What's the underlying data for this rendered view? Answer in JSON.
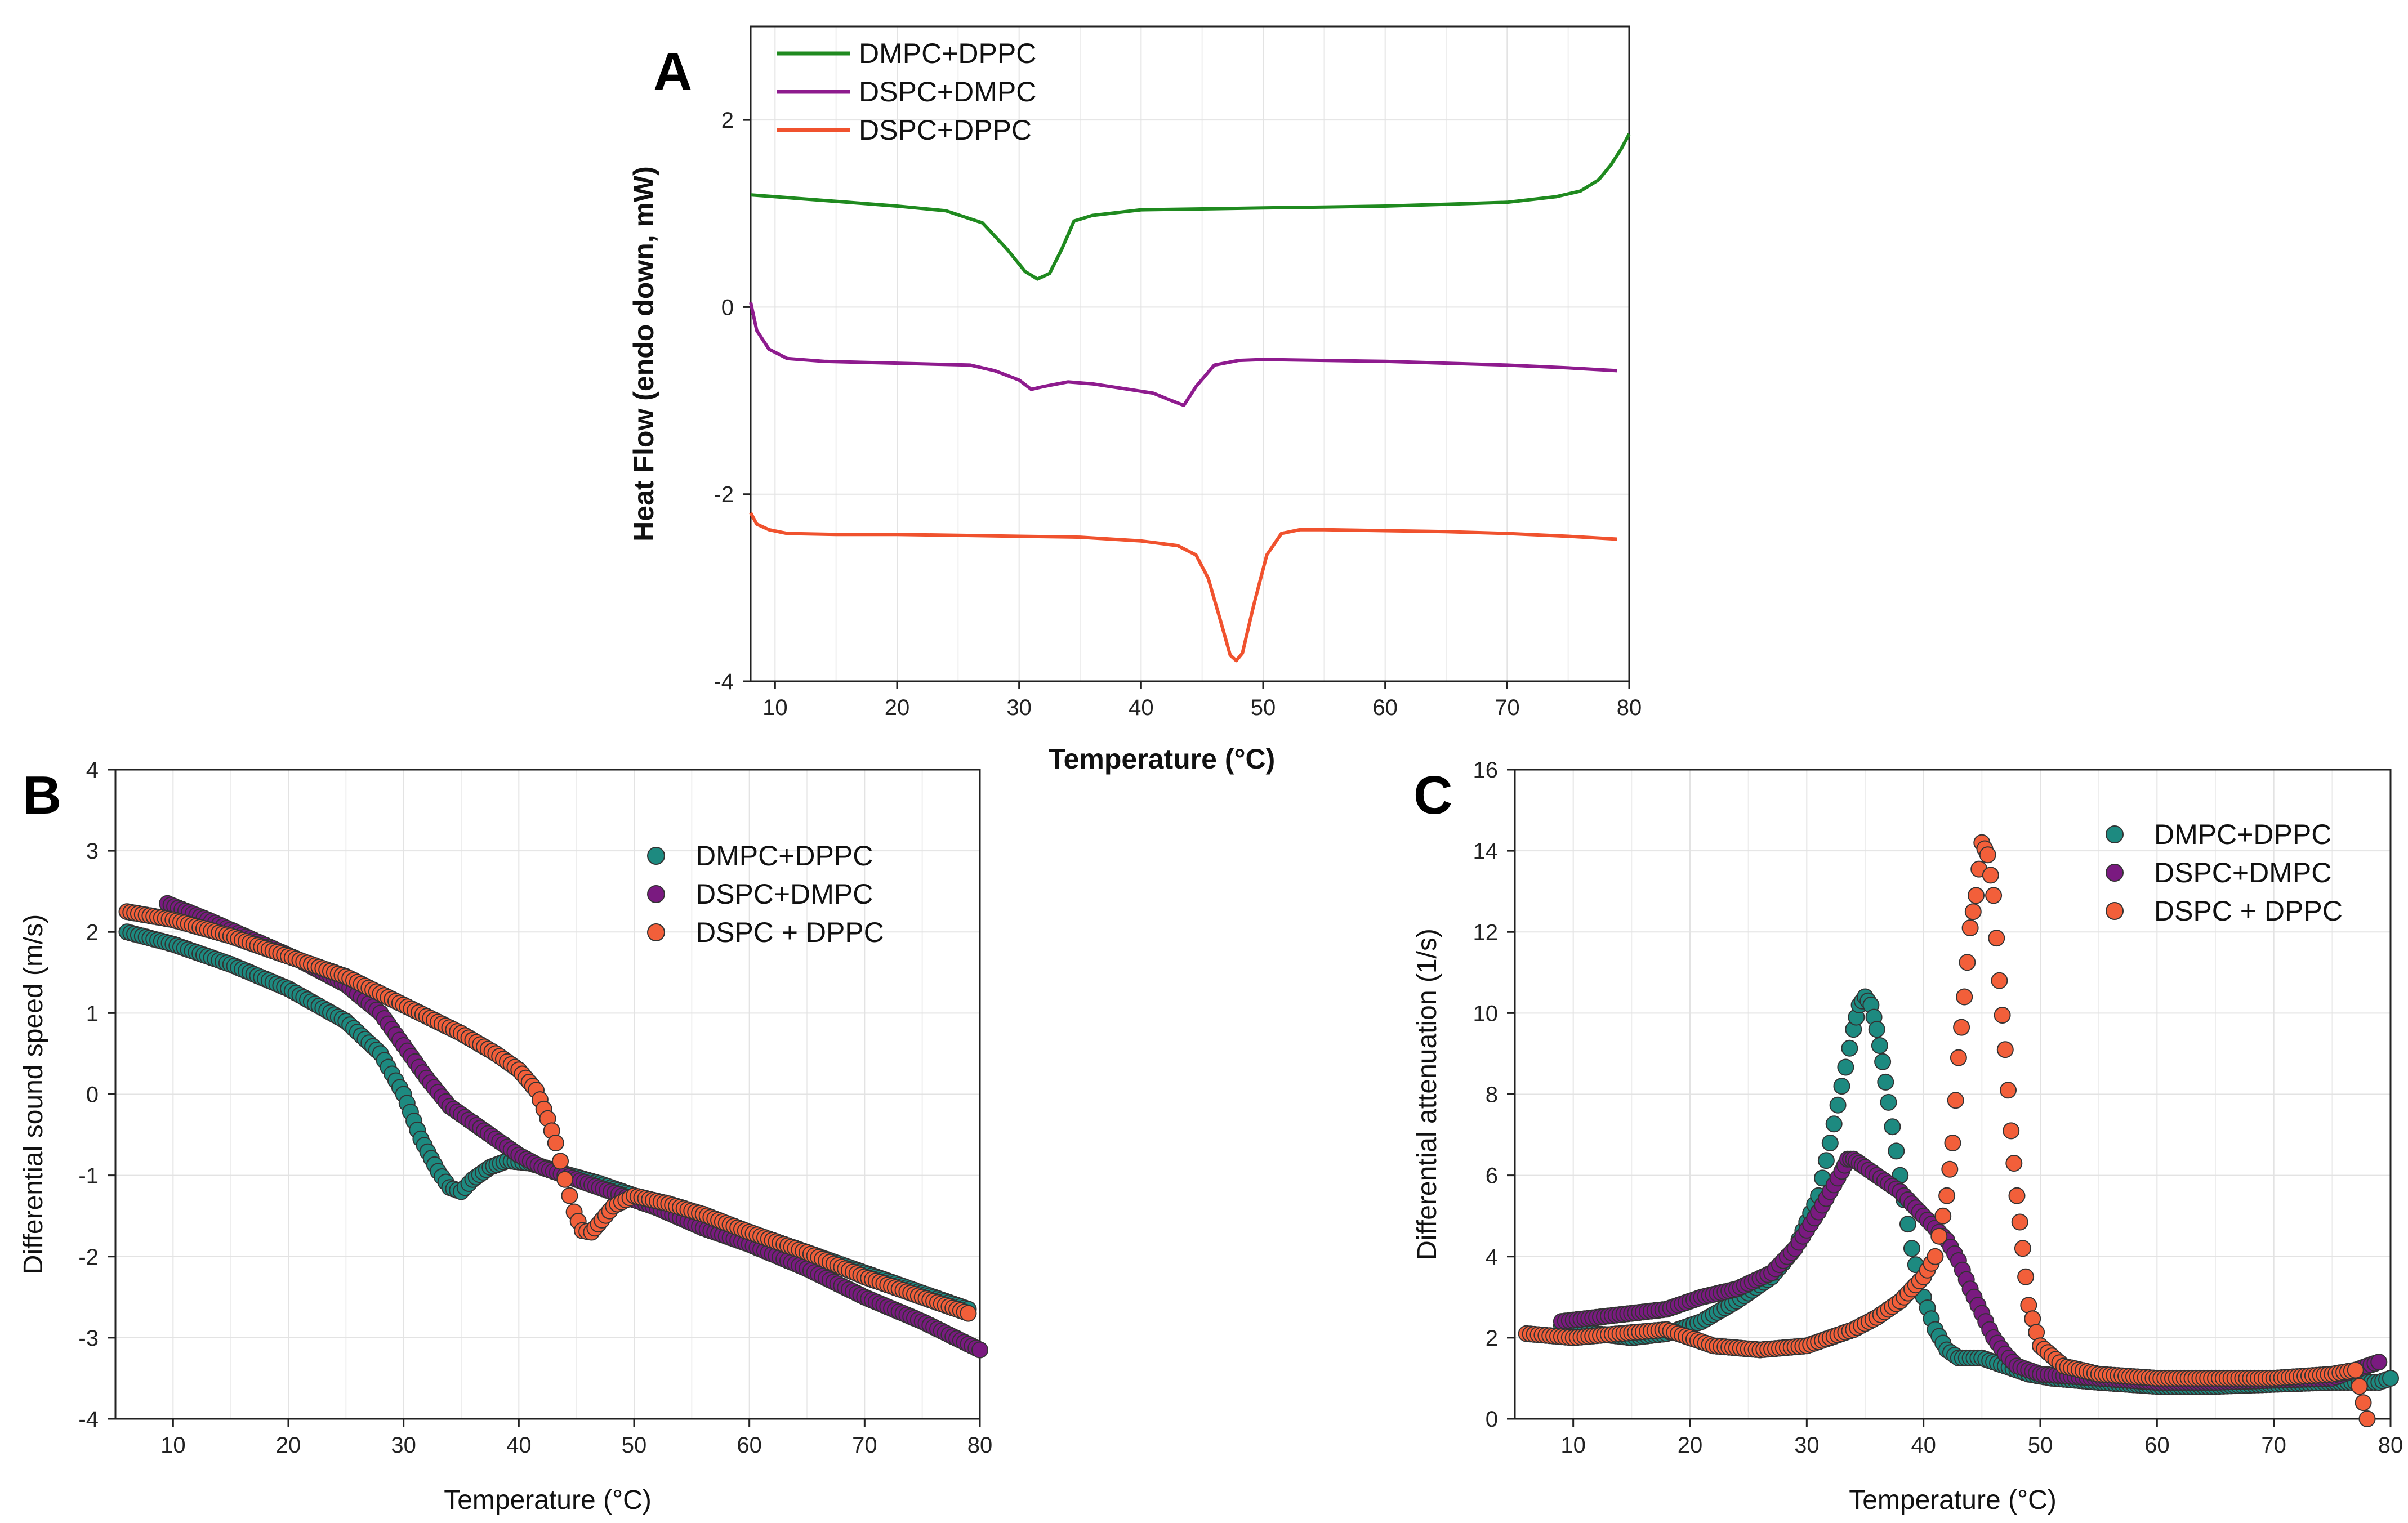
{
  "chart_data": [
    {
      "panel": "A",
      "type": "line",
      "title": "",
      "xlabel": "Temperature (°C)",
      "ylabel": "Heat Flow (endo down, mW)",
      "xlim": [
        8,
        80
      ],
      "ylim": [
        -4,
        3
      ],
      "xticks": [
        10,
        20,
        30,
        40,
        50,
        60,
        70,
        80
      ],
      "yticks": [
        -4,
        -2,
        0,
        2
      ],
      "grid": true,
      "legend_position": "top-left",
      "series": [
        {
          "name": "DMPC+DPPC",
          "color": "#1f8a1f",
          "x": [
            8,
            12,
            16,
            20,
            24,
            27,
            29,
            30.5,
            31.5,
            32.5,
            33.5,
            34.5,
            36,
            40,
            45,
            50,
            55,
            60,
            65,
            70,
            74,
            76,
            77.5,
            78.5,
            79.3,
            80
          ],
          "y": [
            1.2,
            1.16,
            1.12,
            1.08,
            1.03,
            0.9,
            0.62,
            0.38,
            0.3,
            0.36,
            0.62,
            0.92,
            0.98,
            1.04,
            1.05,
            1.06,
            1.07,
            1.08,
            1.1,
            1.12,
            1.18,
            1.24,
            1.36,
            1.52,
            1.68,
            1.85
          ]
        },
        {
          "name": "DSPC+DMPC",
          "color": "#8e1b8e",
          "x": [
            8,
            8.5,
            9.5,
            11,
            14,
            20,
            26,
            28,
            30,
            31,
            32,
            34,
            36,
            39,
            41,
            42.5,
            43.5,
            44.5,
            46,
            48,
            50,
            55,
            60,
            65,
            70,
            75,
            79
          ],
          "y": [
            0.05,
            -0.25,
            -0.45,
            -0.55,
            -0.58,
            -0.6,
            -0.62,
            -0.68,
            -0.78,
            -0.88,
            -0.85,
            -0.8,
            -0.82,
            -0.88,
            -0.92,
            -1.0,
            -1.05,
            -0.85,
            -0.62,
            -0.57,
            -0.56,
            -0.57,
            -0.58,
            -0.6,
            -0.62,
            -0.65,
            -0.68
          ]
        },
        {
          "name": "DSPC+DPPC",
          "color": "#f0522e",
          "x": [
            8,
            8.5,
            9.5,
            11,
            15,
            20,
            25,
            30,
            35,
            40,
            43,
            44.5,
            45.5,
            46.5,
            47.3,
            47.8,
            48.3,
            49.2,
            50.3,
            51.5,
            53,
            55,
            60,
            65,
            70,
            75,
            79
          ],
          "y": [
            -2.2,
            -2.32,
            -2.38,
            -2.42,
            -2.43,
            -2.43,
            -2.44,
            -2.45,
            -2.46,
            -2.5,
            -2.55,
            -2.65,
            -2.9,
            -3.35,
            -3.72,
            -3.78,
            -3.7,
            -3.2,
            -2.65,
            -2.42,
            -2.38,
            -2.38,
            -2.39,
            -2.4,
            -2.42,
            -2.45,
            -2.48
          ]
        }
      ]
    },
    {
      "panel": "B",
      "type": "scatter",
      "title": "",
      "xlabel": "Temperature (°C)",
      "ylabel": "Differential sound speed (m/s)",
      "xlim": [
        5,
        80
      ],
      "ylim": [
        -4,
        4
      ],
      "xticks": [
        10,
        20,
        30,
        40,
        50,
        60,
        70,
        80
      ],
      "yticks": [
        -4,
        -3,
        -2,
        -1,
        0,
        1,
        2,
        3,
        4
      ],
      "grid": true,
      "legend_position": "top-right",
      "series": [
        {
          "name": "DMPC+DPPC",
          "color": "#1d8a80",
          "x": [
            6,
            10,
            15,
            20,
            25,
            28,
            30,
            31.5,
            33,
            34,
            35,
            36,
            37.5,
            39,
            41,
            44,
            47,
            50,
            55,
            60,
            65,
            70,
            75,
            79
          ],
          "y": [
            2.0,
            1.85,
            1.6,
            1.3,
            0.9,
            0.5,
            0.0,
            -0.55,
            -0.95,
            -1.15,
            -1.2,
            -1.05,
            -0.9,
            -0.82,
            -0.85,
            -0.98,
            -1.1,
            -1.25,
            -1.5,
            -1.7,
            -1.95,
            -2.2,
            -2.45,
            -2.65
          ]
        },
        {
          "name": "DSPC+DMPC",
          "color": "#7a1a80",
          "x": [
            9.5,
            13,
            17,
            21,
            25,
            28,
            30,
            32,
            34,
            36,
            38,
            40,
            42,
            45,
            48,
            52,
            56,
            60,
            65,
            70,
            75,
            80
          ],
          "y": [
            2.35,
            2.15,
            1.9,
            1.65,
            1.35,
            1.0,
            0.6,
            0.2,
            -0.15,
            -0.35,
            -0.55,
            -0.75,
            -0.9,
            -1.05,
            -1.2,
            -1.4,
            -1.65,
            -1.85,
            -2.15,
            -2.5,
            -2.8,
            -3.15
          ]
        },
        {
          "name": "DSPC + DPPC",
          "color": "#f25f3a",
          "x": [
            6,
            10,
            15,
            20,
            25,
            30,
            35,
            38,
            40,
            41.5,
            42.5,
            43.2,
            44,
            44.8,
            45.5,
            46.3,
            47.2,
            48.2,
            50,
            53,
            56,
            60,
            65,
            70,
            75,
            79
          ],
          "y": [
            2.25,
            2.15,
            1.95,
            1.7,
            1.45,
            1.1,
            0.75,
            0.5,
            0.3,
            0.05,
            -0.3,
            -0.6,
            -1.05,
            -1.45,
            -1.68,
            -1.7,
            -1.55,
            -1.38,
            -1.25,
            -1.35,
            -1.48,
            -1.7,
            -1.95,
            -2.25,
            -2.5,
            -2.7
          ]
        }
      ]
    },
    {
      "panel": "C",
      "type": "scatter",
      "title": "",
      "xlabel": "Temperature (°C)",
      "ylabel": "Differential attenuation (1/s)",
      "xlim": [
        5,
        80
      ],
      "ylim": [
        0,
        16
      ],
      "xticks": [
        10,
        20,
        30,
        40,
        50,
        60,
        70,
        80
      ],
      "yticks": [
        0,
        2,
        4,
        6,
        8,
        10,
        12,
        14,
        16
      ],
      "grid": true,
      "legend_position": "top-right",
      "series": [
        {
          "name": "DMPC+DPPC",
          "color": "#1d8a80",
          "x": [
            9,
            12,
            15,
            18,
            21,
            24,
            27,
            29,
            31,
            32,
            33,
            34,
            34.5,
            35,
            35.5,
            36,
            36.5,
            37,
            38,
            39,
            40,
            41,
            42,
            43,
            45,
            47,
            49,
            51,
            55,
            60,
            65,
            70,
            75,
            79,
            80
          ],
          "y": [
            2.3,
            2.1,
            2.0,
            2.1,
            2.4,
            2.9,
            3.5,
            4.2,
            5.5,
            6.8,
            8.2,
            9.6,
            10.2,
            10.4,
            10.2,
            9.6,
            8.8,
            7.8,
            6.0,
            4.2,
            3.0,
            2.2,
            1.7,
            1.5,
            1.5,
            1.3,
            1.1,
            1.0,
            0.9,
            0.8,
            0.8,
            0.85,
            0.9,
            0.9,
            1.0
          ]
        },
        {
          "name": "DSPC+DMPC",
          "color": "#7a1a80",
          "x": [
            9,
            12,
            15,
            18,
            21,
            24,
            27,
            29,
            31,
            32,
            33,
            33.5,
            34,
            34.5,
            35,
            36,
            37,
            38,
            39,
            40,
            41,
            42,
            43,
            44,
            45,
            46,
            47,
            48,
            50,
            55,
            60,
            65,
            70,
            75,
            79
          ],
          "y": [
            2.4,
            2.5,
            2.6,
            2.7,
            3.0,
            3.2,
            3.6,
            4.2,
            5.1,
            5.6,
            6.1,
            6.4,
            6.4,
            6.3,
            6.2,
            6.0,
            5.8,
            5.6,
            5.3,
            5.0,
            4.7,
            4.4,
            3.9,
            3.2,
            2.6,
            2.0,
            1.6,
            1.3,
            1.1,
            1.0,
            0.9,
            0.9,
            0.95,
            1.0,
            1.4
          ]
        },
        {
          "name": "DSPC + DPPC",
          "color": "#f25f3a",
          "x": [
            6,
            10,
            14,
            18,
            22,
            26,
            30,
            34,
            36,
            38,
            40,
            41,
            42,
            42.5,
            43,
            43.5,
            44,
            44.5,
            45,
            45.5,
            46,
            46.5,
            47,
            47.5,
            48,
            48.5,
            49,
            50,
            52,
            55,
            60,
            65,
            70,
            75,
            77,
            78
          ],
          "y": [
            2.1,
            2.0,
            2.1,
            2.2,
            1.8,
            1.7,
            1.8,
            2.2,
            2.5,
            2.9,
            3.5,
            4.0,
            5.5,
            6.8,
            8.9,
            10.4,
            12.1,
            12.9,
            14.2,
            13.9,
            12.9,
            10.8,
            9.1,
            7.1,
            5.5,
            4.2,
            2.8,
            1.8,
            1.3,
            1.1,
            1.0,
            1.0,
            1.0,
            1.1,
            1.2,
            0.0
          ]
        }
      ]
    }
  ]
}
